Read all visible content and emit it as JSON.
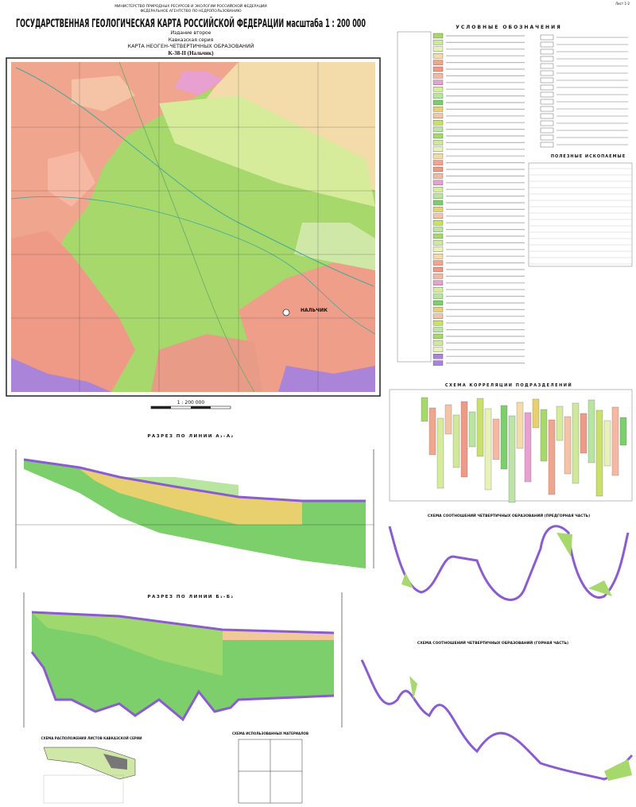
{
  "header": {
    "sheet_number": "Лист 1-2",
    "ministry": "МИНИСТЕРСТВО ПРИРОДНЫХ РЕСУРСОВ И ЭКОЛОГИИ РОССИЙСКОЙ ФЕДЕРАЦИИ",
    "agency": "ФЕДЕРАЛЬНОЕ АГЕНТСТВО ПО НЕДРОПОЛЬЗОВАНИЮ",
    "title": "ГОСУДАРСТВЕННАЯ ГЕОЛОГИЧЕСКАЯ КАРТА РОССИЙСКОЙ ФЕДЕРАЦИИ масштаба 1 : 200 000",
    "edition": "Издание второе",
    "series": "Кавказская серия",
    "map_title": "КАРТА НЕОГЕН-ЧЕТВЕРТИЧНЫХ ОБРАЗОВАНИЙ",
    "sheet": "K-38-II (Нальчик)"
  },
  "map": {
    "city": "НАЛЬЧИК",
    "scale": "1 : 200 000"
  },
  "legend": {
    "title": "УСЛОВНЫЕ ОБОЗНАЧЕНИЯ",
    "minerals_title": "ПОЛЕЗНЫЕ ИСКОПАЕМЫЕ"
  },
  "correlation": {
    "title": "СХЕМА КОРРЕЛЯЦИИ ПОДРАЗДЕЛЕНИЙ"
  },
  "sections": {
    "a_title": "РАЗРЕЗ ПО ЛИНИИ А₁-А₂",
    "b_title": "РАЗРЕЗ ПО ЛИНИИ Б₁-Б₂"
  },
  "schemes": {
    "foothills": "СХЕМА СООТНОШЕНИЙ ЧЕТВЕРТИЧНЫХ ОБРАЗОВАНИЙ (ПРЕДГОРНАЯ ЧАСТЬ)",
    "mountains": "СХЕМА СООТНОШЕНИЙ ЧЕТВЕРТИЧНЫХ ОБРАЗОВАНИЙ (ГОРНАЯ ЧАСТЬ)",
    "layout": "СХЕМА РАСПОЛОЖЕНИЯ ЛИСТОВ КАВКАЗСКОЙ СЕРИИ",
    "materials": "СХЕМА ИСПОЛЬЗОВАННЫХ МАТЕРИАЛОВ"
  }
}
